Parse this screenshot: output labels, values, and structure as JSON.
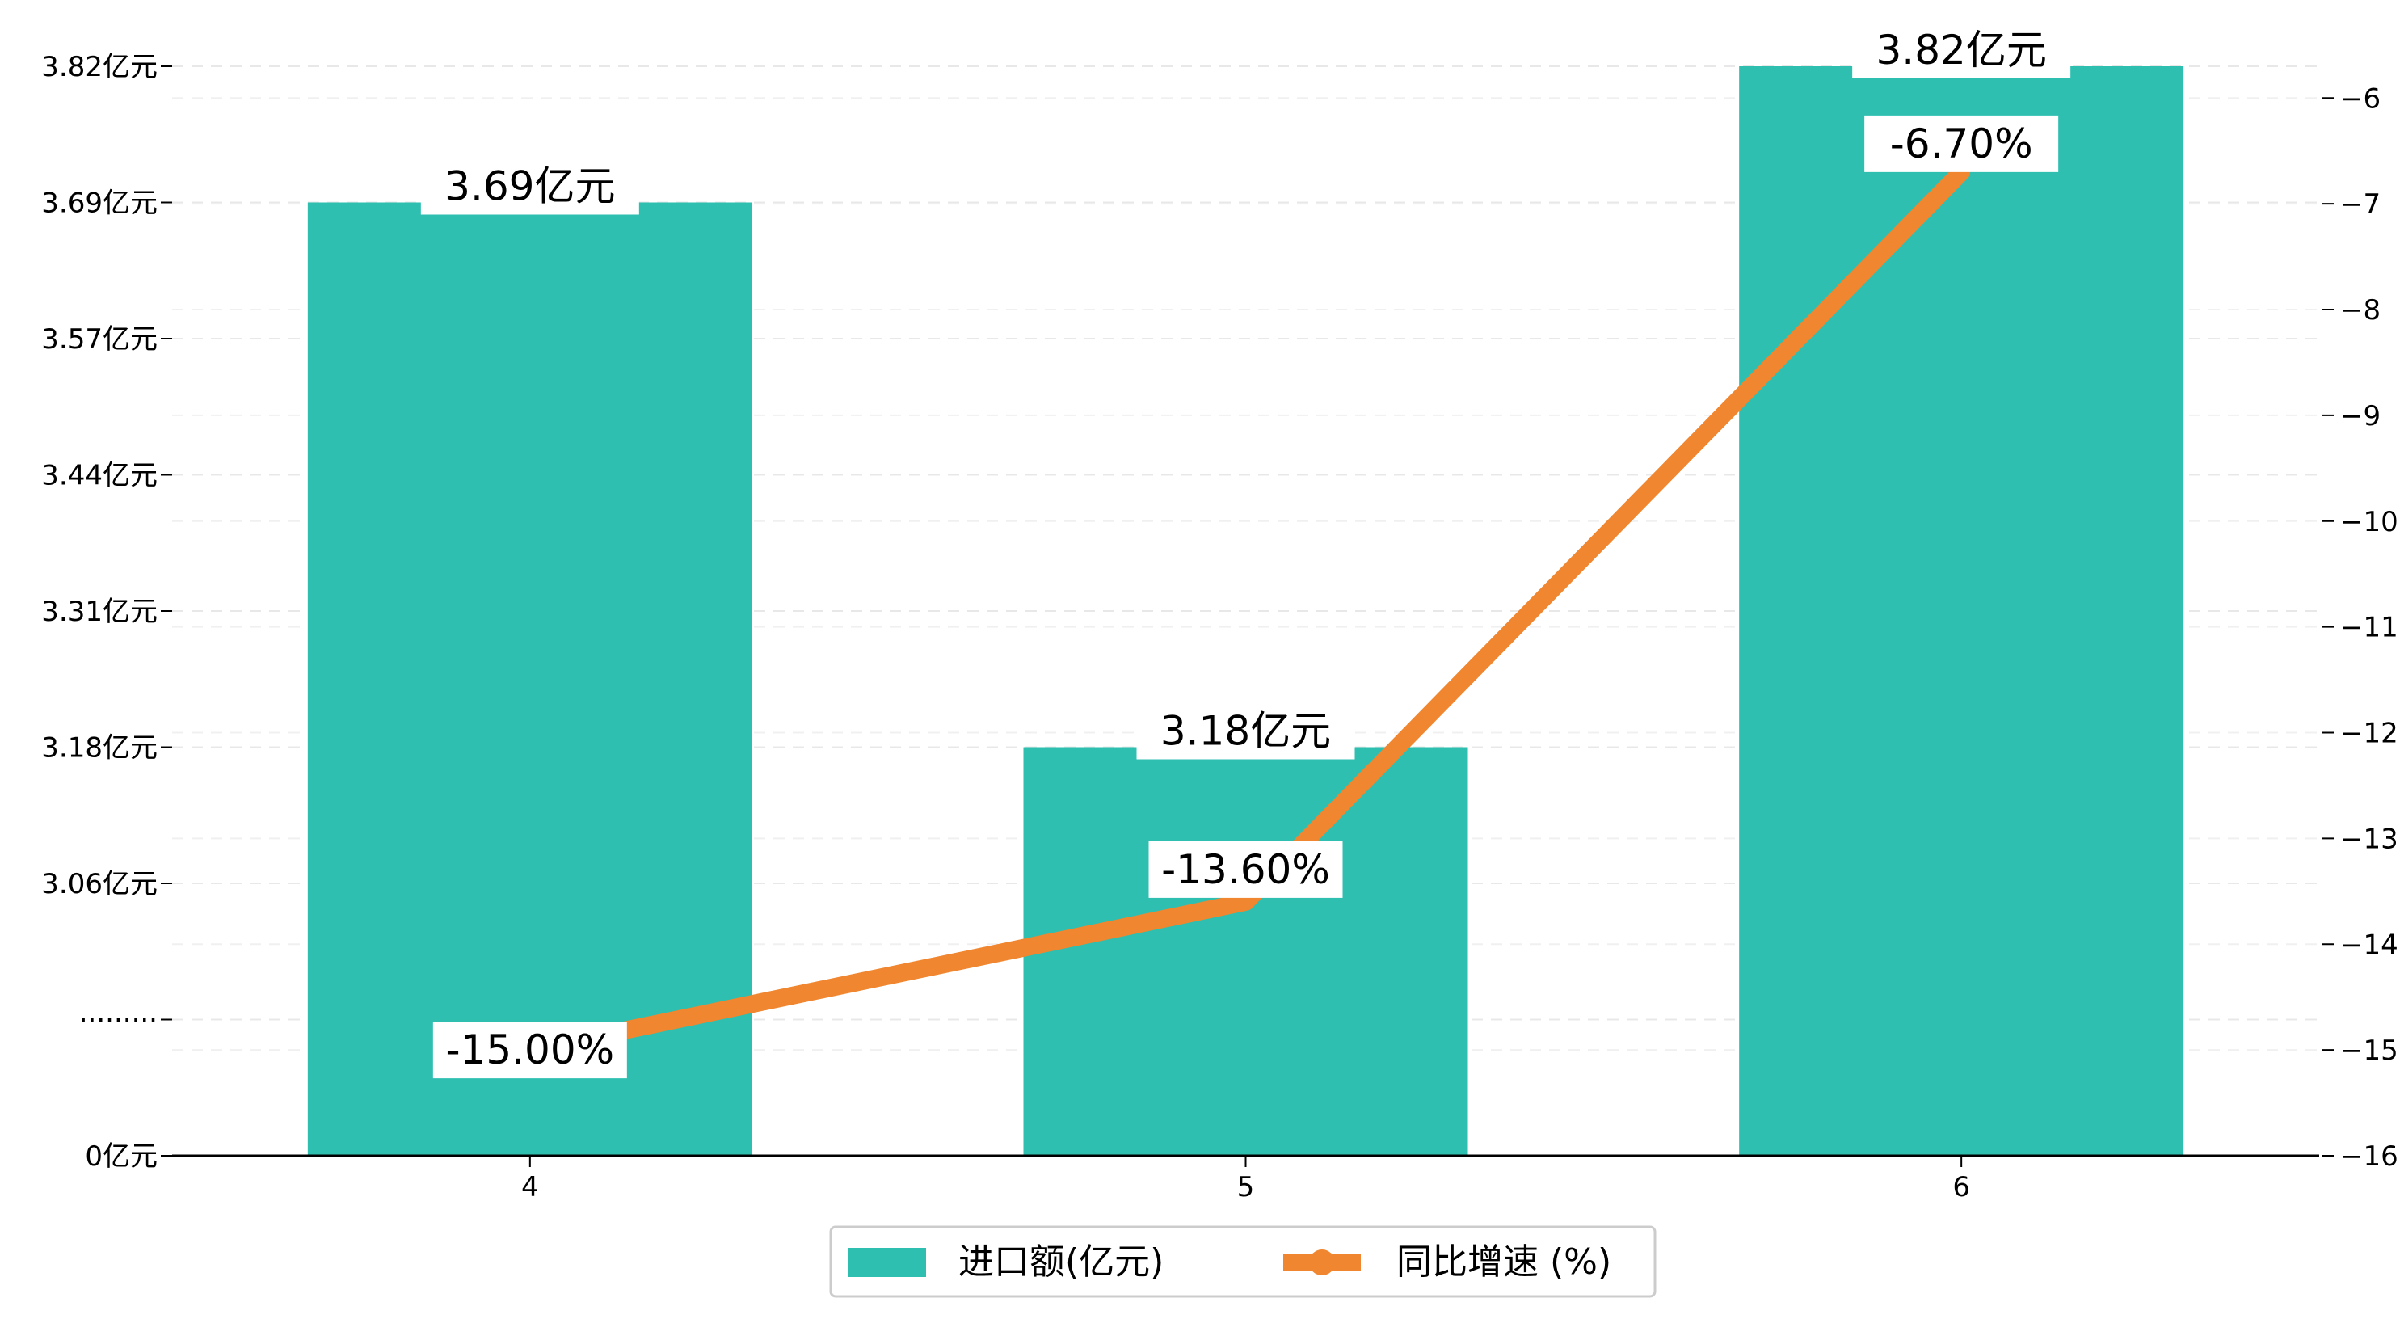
{
  "chart_data": {
    "type": "bar+line",
    "categories": [
      "4",
      "5",
      "6"
    ],
    "series": [
      {
        "name": "进口额(亿元)",
        "type": "bar",
        "axis": "left",
        "color": "#2ebfb1",
        "values": [
          3.69,
          3.18,
          3.82
        ],
        "labels": [
          "3.69亿元",
          "3.18亿元",
          "3.82亿元"
        ]
      },
      {
        "name": "同比增速 (%)",
        "type": "line",
        "axis": "right",
        "color": "#f0862f",
        "values": [
          -15.0,
          -13.6,
          -6.7
        ],
        "labels": [
          "-15.00%",
          "-13.60%",
          "-6.70%"
        ]
      }
    ],
    "y_left": {
      "ticks": [
        {
          "label": "0亿元",
          "pos": 0
        },
        {
          "label": "·········",
          "pos": 1
        },
        {
          "label": "3.06亿元",
          "pos": 2
        },
        {
          "label": "3.18亿元",
          "pos": 3
        },
        {
          "label": "3.31亿元",
          "pos": 4
        },
        {
          "label": "3.44亿元",
          "pos": 5
        },
        {
          "label": "3.57亿元",
          "pos": 6
        },
        {
          "label": "3.69亿元",
          "pos": 7
        },
        {
          "label": "3.82亿元",
          "pos": 8
        }
      ],
      "broken_axis": true
    },
    "y_right": {
      "ylim": [
        -16,
        -5.7
      ],
      "ticks": [
        -16,
        -15,
        -14,
        -13,
        -12,
        -11,
        -10,
        -9,
        -8,
        -7,
        -6
      ]
    },
    "grid": "horizontal-dashed",
    "legend": "bottom-center"
  }
}
